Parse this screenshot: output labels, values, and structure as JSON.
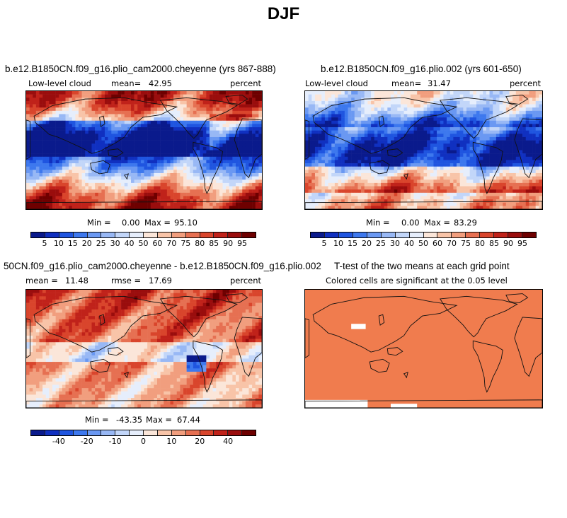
{
  "title": "DJF",
  "panels": [
    {
      "title": "b.e12.B1850CN.f09_g16.plio_cam2000.cheyenne (yrs 867-888)",
      "left_label": "Low-level cloud",
      "mean_label": "mean=",
      "mean_value": "42.95",
      "units": "percent",
      "min_label": "Min =",
      "min_value": "0.00",
      "max_label": "Max =",
      "max_value": "95.10"
    },
    {
      "title": "b.e12.B1850CN.f09_g16.plio.002 (yrs 601-650)",
      "left_label": "Low-level cloud",
      "mean_label": "mean=",
      "mean_value": "31.47",
      "units": "percent",
      "min_label": "Min =",
      "min_value": "0.00",
      "max_label": "Max =",
      "max_value": "83.29"
    },
    {
      "title": "50CN.f09_g16.plio_cam2000.cheyenne - b.e12.B1850CN.f09_g16.plio.002",
      "mean_label": "mean =",
      "mean_value": "11.48",
      "rmse_label": "rmse =",
      "rmse_value": "17.69",
      "units": "percent",
      "min_label": "Min =",
      "min_value": "-43.35",
      "max_label": "Max =",
      "max_value": "67.44"
    },
    {
      "title": "T-test of the two means at each grid point",
      "subtitle": "Colored cells are significant at the 0.05 level"
    }
  ],
  "colorbar_abs": {
    "colors": [
      "#0a1a8c",
      "#1030c0",
      "#1f55e0",
      "#3d78ee",
      "#6a98f2",
      "#98b8f5",
      "#c2d6f9",
      "#e6eefc",
      "#fbe6d9",
      "#f8c4a8",
      "#f19e7e",
      "#e67052",
      "#d9452c",
      "#c0221a",
      "#9a0d0d",
      "#6e0000"
    ],
    "labels": [
      "5",
      "10",
      "15",
      "20",
      "25",
      "30",
      "40",
      "50",
      "60",
      "70",
      "75",
      "80",
      "85",
      "90",
      "95"
    ]
  },
  "colorbar_diff": {
    "colors": [
      "#0a1a8c",
      "#1030c0",
      "#1f55e0",
      "#3d78ee",
      "#6a98f2",
      "#98b8f5",
      "#c2d6f9",
      "#e6eefc",
      "#fbe6d9",
      "#f8c4a8",
      "#f19e7e",
      "#e67052",
      "#d9452c",
      "#c0221a",
      "#9a0d0d",
      "#6e0000"
    ],
    "labels": [
      "-40",
      "-20",
      "-10",
      "0",
      "10",
      "20",
      "40"
    ],
    "label_positions": [
      2,
      4,
      6,
      8,
      10,
      12,
      14
    ]
  },
  "ttest_color": "#f07c4e"
}
